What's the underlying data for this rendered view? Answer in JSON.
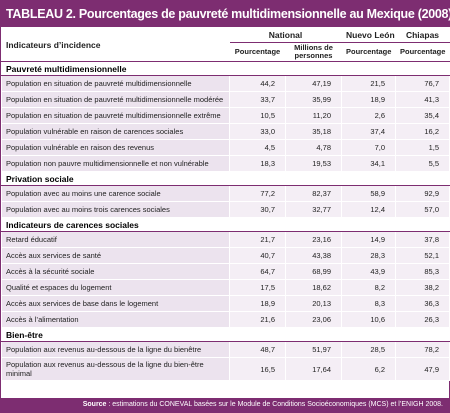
{
  "header": {
    "title": "TABLEAU 2. Pourcentages de pauvreté multidimensionnelle au Mexique (2008)"
  },
  "table": {
    "columns": {
      "indicator": "Indicateurs d’incidence",
      "national": "National",
      "nuevo_leon": "Nuevo León",
      "chiapas": "Chiapas",
      "subheaders": [
        "Pourcentage",
        "Millions de personnes",
        "Pourcentage",
        "Pourcentage"
      ]
    },
    "sections": [
      {
        "title": "Pauvreté multidimensionnelle",
        "rows": [
          [
            "Population en situation de pauvreté multidimensionnelle",
            "44,2",
            "47,19",
            "21,5",
            "76,7"
          ],
          [
            "Population en situation de pauvreté multidimensionnelle modérée",
            "33,7",
            "35,99",
            "18,9",
            "41,3"
          ],
          [
            "Population en situation de pauvreté multidimensionnelle extrême",
            "10,5",
            "11,20",
            "2,6",
            "35,4"
          ],
          [
            "Population vulnérable en raison de carences sociales",
            "33,0",
            "35,18",
            "37,4",
            "16,2"
          ],
          [
            "Population vulnérable en raison des revenus",
            "4,5",
            "4,78",
            "7,0",
            "1,5"
          ],
          [
            "Population non pauvre multidimensionnelle et non vulnérable",
            "18,3",
            "19,53",
            "34,1",
            "5,5"
          ]
        ]
      },
      {
        "title": "Privation sociale",
        "rows": [
          [
            "Population avec au moins une carence sociale",
            "77,2",
            "82,37",
            "58,9",
            "92,9"
          ],
          [
            "Population avec au moins trois carences sociales",
            "30,7",
            "32,77",
            "12,4",
            "57,0"
          ]
        ]
      },
      {
        "title": "Indicateurs de carences sociales",
        "rows": [
          [
            "Retard éducatif",
            "21,7",
            "23,16",
            "14,9",
            "37,8"
          ],
          [
            "Accès aux services de santé",
            "40,7",
            "43,38",
            "28,3",
            "52,1"
          ],
          [
            "Accès à la sécurité sociale",
            "64,7",
            "68,99",
            "43,9",
            "85,3"
          ],
          [
            "Qualité et espaces du logement",
            "17,5",
            "18,62",
            "8,2",
            "38,2"
          ],
          [
            "Accès aux services de base dans le logement",
            "18,9",
            "20,13",
            "8,3",
            "36,3"
          ],
          [
            "Accès à l’alimentation",
            "21,6",
            "23,06",
            "10,6",
            "26,3"
          ]
        ]
      },
      {
        "title": "Bien-être",
        "rows": [
          [
            "Population aux revenus au-dessous de la ligne du bienêtre",
            "48,7",
            "51,97",
            "28,5",
            "78,2"
          ],
          [
            "Population aux revenus au-dessous de la ligne du bien-être minimal",
            "16,5",
            "17,64",
            "6,2",
            "47,9"
          ]
        ]
      }
    ]
  },
  "footer": {
    "label": "Source",
    "text": " : estimations du CONEVAL basées sur le Module de Conditions Socioéconomiques (MCS) et l’ENIGH 2008."
  }
}
